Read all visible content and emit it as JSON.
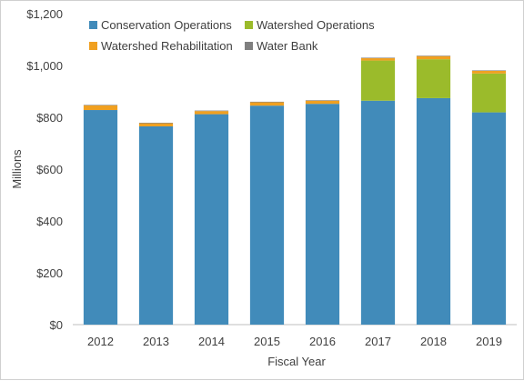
{
  "chart_data": {
    "type": "bar",
    "stacked": true,
    "title": "",
    "xlabel": "Fiscal Year",
    "ylabel": "Millions",
    "categories": [
      "2012",
      "2013",
      "2014",
      "2015",
      "2016",
      "2017",
      "2018",
      "2019"
    ],
    "ylim": [
      0,
      1200
    ],
    "yticks": [
      0,
      200,
      400,
      600,
      800,
      1000,
      1200
    ],
    "ytick_labels": [
      "$0",
      "$200",
      "$400",
      "$600",
      "$800",
      "$1,000",
      "$1,200"
    ],
    "grid": false,
    "legend_position": "top-left",
    "series": [
      {
        "name": "Conservation Operations",
        "color": "#418bba",
        "values": [
          828,
          765,
          812,
          845,
          852,
          864,
          874,
          819
        ]
      },
      {
        "name": "Watershed Operations",
        "color": "#9bbb2b",
        "values": [
          0,
          0,
          0,
          0,
          0,
          155,
          150,
          150
        ]
      },
      {
        "name": "Watershed Rehabilitation",
        "color": "#f0a020",
        "values": [
          18,
          12,
          12,
          13,
          12,
          9,
          12,
          10
        ]
      },
      {
        "name": "Water Bank",
        "color": "#7f7f7f",
        "values": [
          2,
          2,
          2,
          2,
          2,
          2,
          2,
          2
        ]
      }
    ]
  }
}
